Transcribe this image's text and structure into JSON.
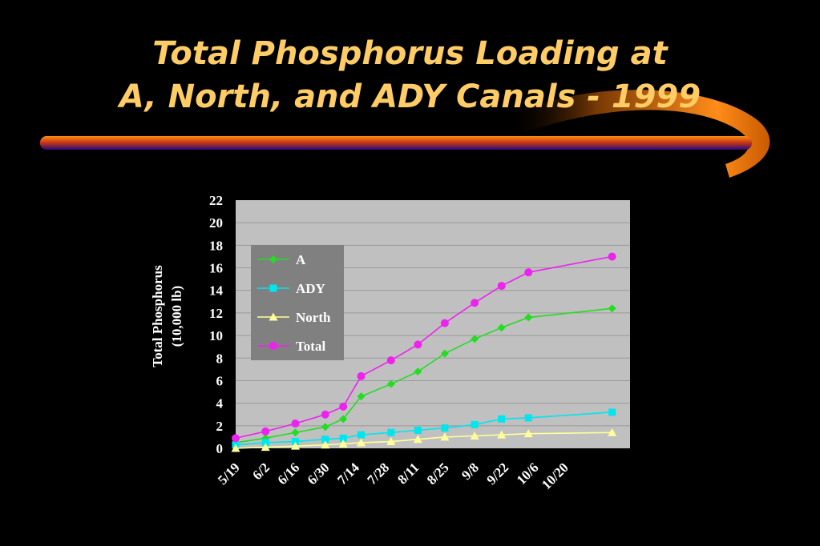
{
  "slide": {
    "title_line1": "Total Phosphorus Loading at",
    "title_line2": "A, North, and ADY Canals - 1999",
    "colors": {
      "background": "#000000",
      "title": "#ffcc66",
      "bar_orange": "#ff8c1a",
      "bar_purple": "#2a0a7a"
    }
  },
  "chart_data": {
    "type": "line",
    "title": "",
    "xlabel": "",
    "ylabel_line1": "Total Phosphorus",
    "ylabel_line2": "(10,000 lb)",
    "ylim": [
      0,
      22
    ],
    "yticks": [
      0,
      2,
      4,
      6,
      8,
      10,
      12,
      14,
      16,
      18,
      20,
      22
    ],
    "grid": true,
    "legend_position": "top-left",
    "x_tick_labels": [
      "5/19",
      "6/2",
      "6/16",
      "6/30",
      "7/14",
      "7/28",
      "8/11",
      "8/25",
      "9/8",
      "9/22",
      "10/6",
      "10/20"
    ],
    "x_domain": [
      0,
      13.2
    ],
    "series": [
      {
        "name": "A",
        "color": "#22dd22",
        "marker": "diamond",
        "x": [
          0,
          1,
          2,
          3,
          3.6,
          4.2,
          5.2,
          6.1,
          7,
          8,
          8.9,
          9.8,
          12.6
        ],
        "y": [
          0.5,
          0.9,
          1.4,
          1.9,
          2.6,
          4.6,
          5.7,
          6.8,
          8.4,
          9.7,
          10.7,
          11.6,
          12.4
        ]
      },
      {
        "name": "ADY",
        "color": "#00e5ee",
        "marker": "square",
        "x": [
          0,
          1,
          2,
          3,
          3.6,
          4.2,
          5.2,
          6.1,
          7,
          8,
          8.9,
          9.8,
          12.6
        ],
        "y": [
          0.3,
          0.5,
          0.6,
          0.8,
          0.9,
          1.2,
          1.4,
          1.6,
          1.8,
          2.1,
          2.6,
          2.7,
          3.2
        ]
      },
      {
        "name": "North",
        "color": "#ffff99",
        "marker": "triangle",
        "x": [
          0,
          1,
          2,
          3,
          3.6,
          4.2,
          5.2,
          6.1,
          7,
          8,
          8.9,
          9.8,
          12.6
        ],
        "y": [
          0.0,
          0.1,
          0.2,
          0.3,
          0.4,
          0.5,
          0.6,
          0.8,
          1.0,
          1.1,
          1.2,
          1.3,
          1.4
        ]
      },
      {
        "name": "Total",
        "color": "#ee22ee",
        "marker": "circle",
        "x": [
          0,
          1,
          2,
          3,
          3.6,
          4.2,
          5.2,
          6.1,
          7,
          8,
          8.9,
          9.8,
          12.6
        ],
        "y": [
          0.9,
          1.5,
          2.2,
          3.0,
          3.7,
          6.4,
          7.8,
          9.2,
          11.1,
          12.9,
          14.4,
          15.6,
          17.0
        ]
      }
    ]
  }
}
